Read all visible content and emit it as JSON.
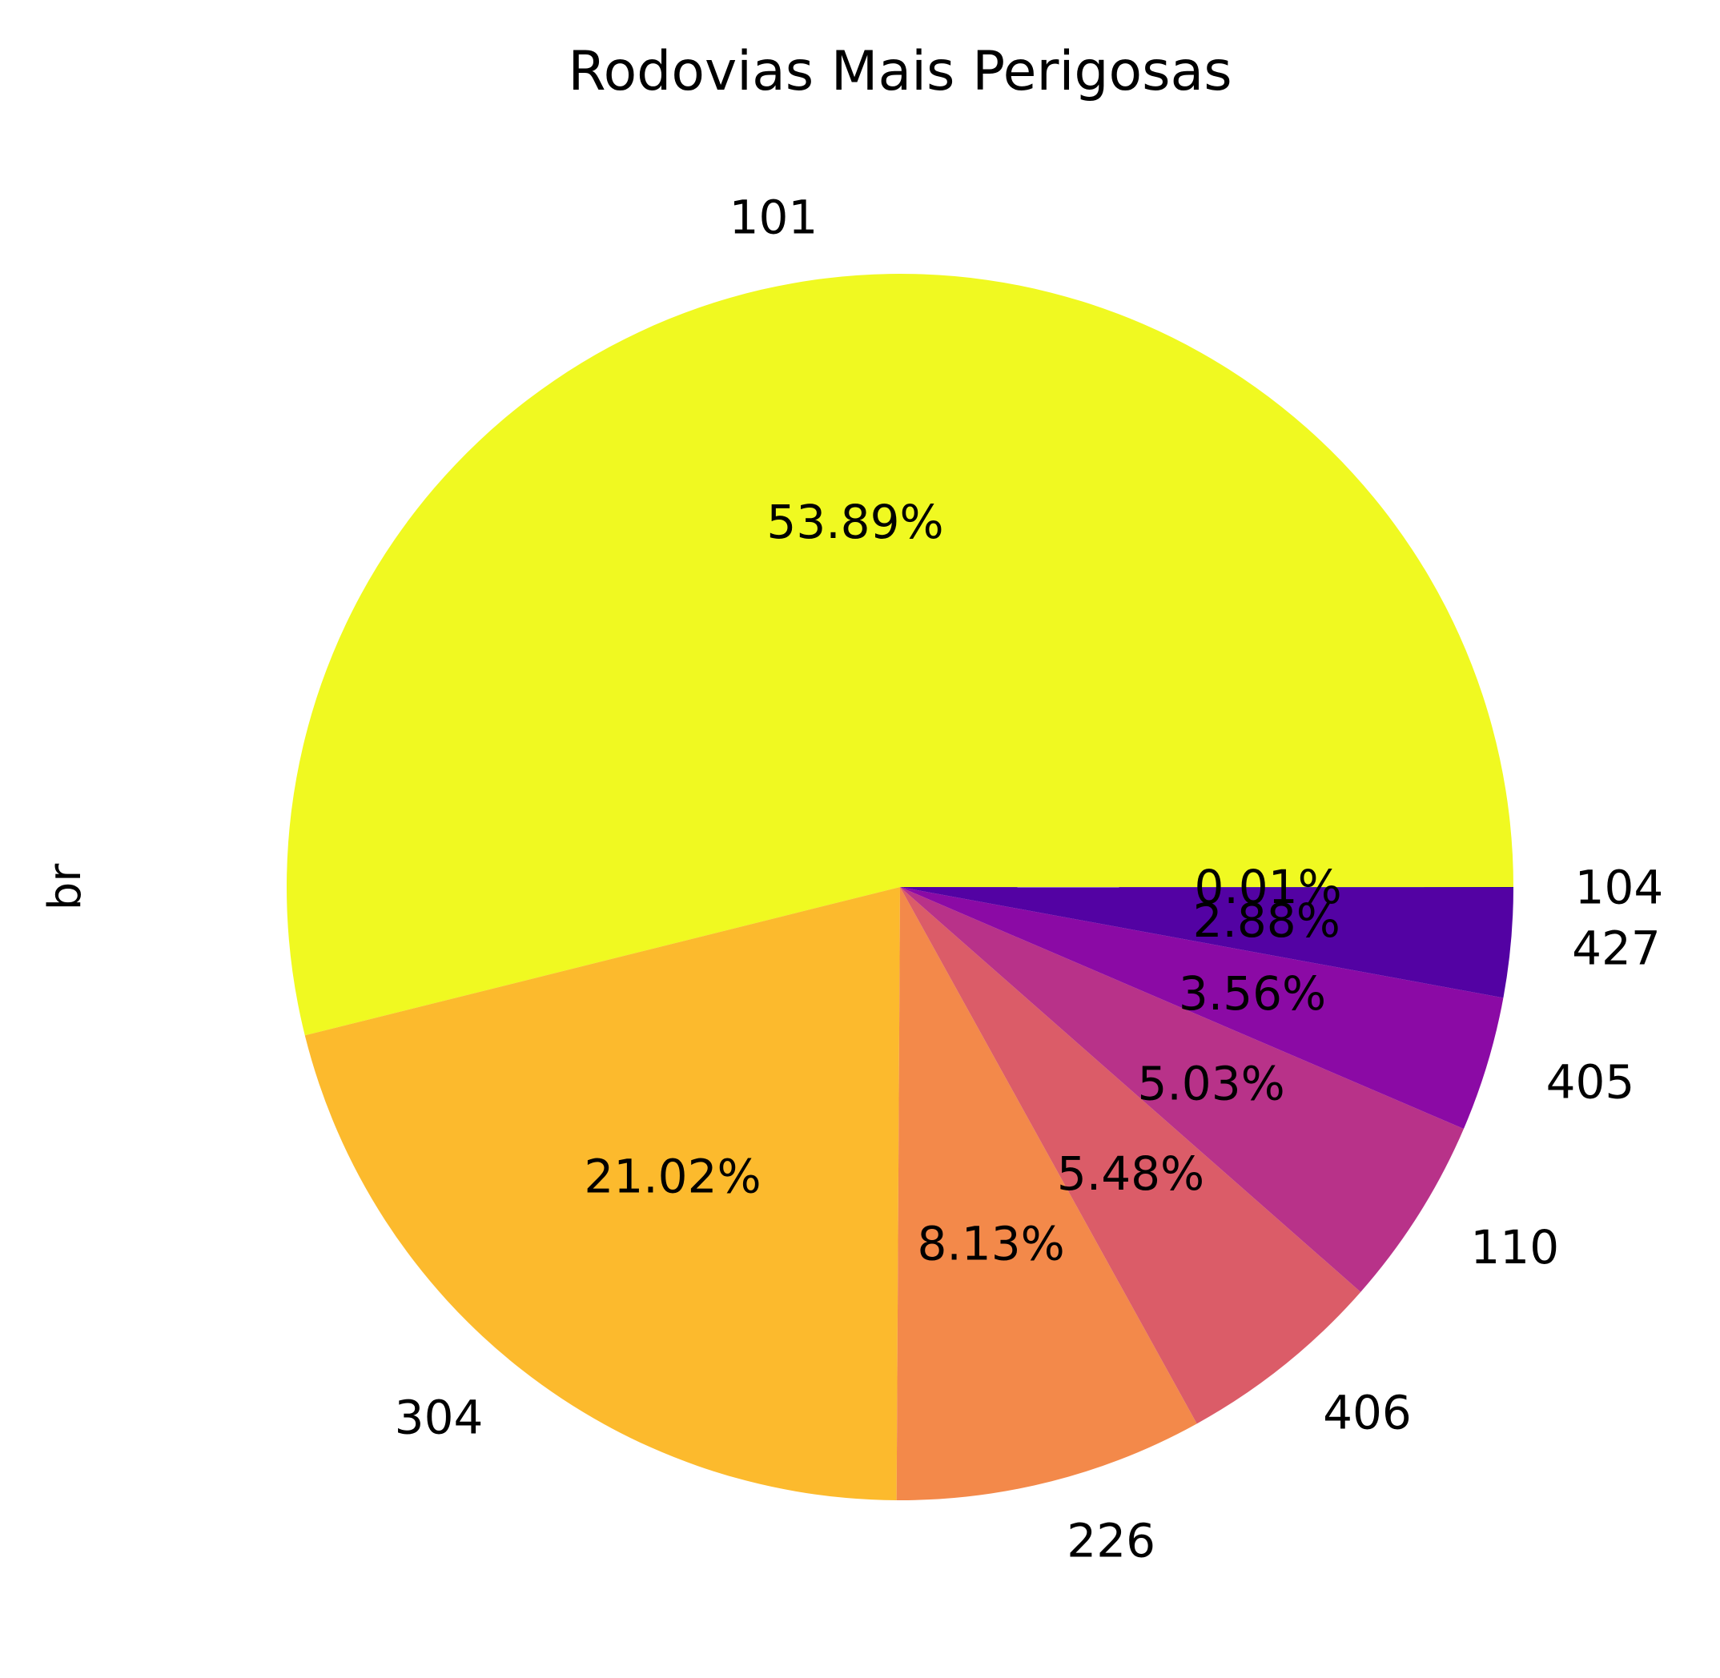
{
  "chart_data": {
    "type": "pie",
    "title": "Rodovias Mais Perigosas",
    "ylabel": "br",
    "start_angle_deg": 0,
    "direction": "counterclockwise",
    "slices": [
      {
        "label": "101",
        "percent": 53.89,
        "pct_label": "53.89%",
        "color": "#f0f921"
      },
      {
        "label": "304",
        "percent": 21.02,
        "pct_label": "21.02%",
        "color": "#fcba2d"
      },
      {
        "label": "226",
        "percent": 8.13,
        "pct_label": "8.13%",
        "color": "#f3894a"
      },
      {
        "label": "406",
        "percent": 5.48,
        "pct_label": "5.48%",
        "color": "#db5c68"
      },
      {
        "label": "110",
        "percent": 5.03,
        "pct_label": "5.03%",
        "color": "#b83289"
      },
      {
        "label": "405",
        "percent": 3.56,
        "pct_label": "3.56%",
        "color": "#8b0aa5"
      },
      {
        "label": "427",
        "percent": 2.88,
        "pct_label": "2.88%",
        "color": "#5302a3"
      },
      {
        "label": "104",
        "percent": 0.01,
        "pct_label": "0.01%",
        "color": "#0d0887"
      }
    ]
  }
}
